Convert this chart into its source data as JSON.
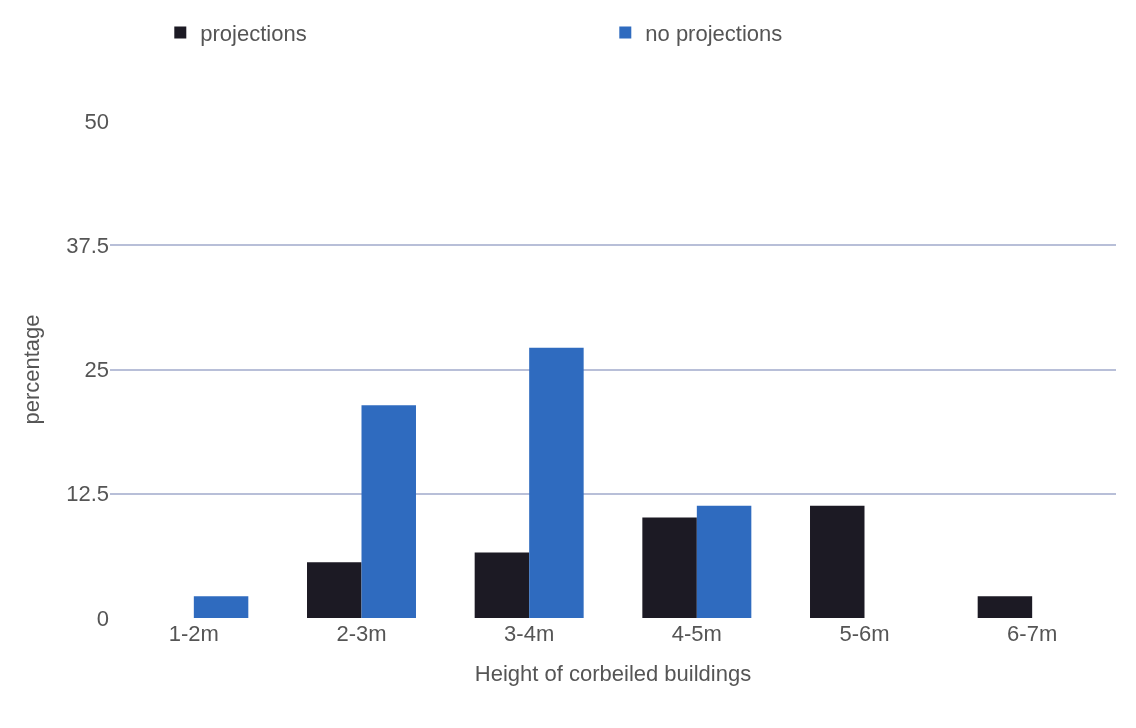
{
  "chart_data": {
    "type": "bar",
    "xlabel": "Height of corbeiled buildings",
    "ylabel": "percentage",
    "categories": [
      "1-2m",
      "2-3m",
      "3-4m",
      "4-5m",
      "5-6m",
      "6-7m"
    ],
    "series": [
      {
        "name": "projections",
        "color": "#1c1a24",
        "values": [
          0,
          5.6,
          6.6,
          10.1,
          11.3,
          2.2
        ]
      },
      {
        "name": "no projections",
        "color": "#2f6bbf",
        "values": [
          2.2,
          21.4,
          27.2,
          11.3,
          0,
          0
        ]
      }
    ],
    "ylim": [
      0,
      50
    ],
    "yticks": [
      0,
      12.5,
      25,
      37.5,
      50
    ],
    "grid": "y",
    "legend": "top left"
  }
}
